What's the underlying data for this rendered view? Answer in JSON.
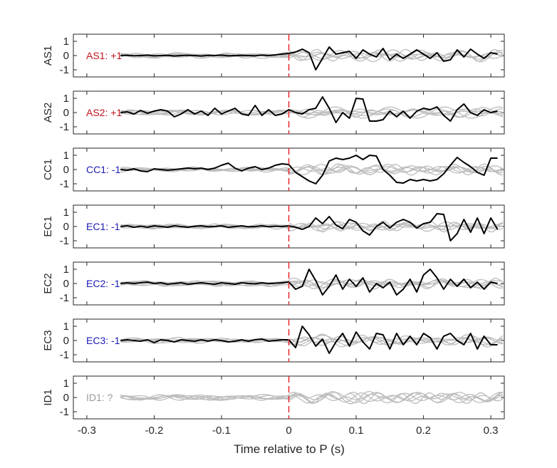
{
  "chart_data": {
    "type": "line",
    "xlabel": "Time relative to P (s)",
    "xlim": [
      -0.32,
      0.32
    ],
    "xticks": [
      -0.3,
      -0.2,
      -0.1,
      0,
      0.1,
      0.2,
      0.3
    ],
    "xtick_labels": [
      "-0.3",
      "-0.2",
      "-0.1",
      "0",
      "0.1",
      "0.2",
      "0.3"
    ],
    "ylim": [
      -1.5,
      1.5
    ],
    "yticks": [
      -1,
      0,
      1
    ],
    "ytick_labels": [
      "-1",
      "0",
      "1"
    ],
    "p_arrival_time": 0,
    "colors": {
      "positive": "#c0141c",
      "negative": "#1a1ab4",
      "unknown": "#9a9a9a",
      "trace": "#000000",
      "background_traces": "#bdbdbd",
      "p_marker": "#e8262a"
    },
    "panels": [
      {
        "ylabel": "AS1",
        "annotation": "AS1: +1",
        "polarity": "positive",
        "trace": {
          "x": [
            -0.25,
            -0.24,
            -0.23,
            -0.22,
            -0.21,
            -0.2,
            -0.19,
            -0.18,
            -0.17,
            -0.16,
            -0.15,
            -0.14,
            -0.13,
            -0.12,
            -0.11,
            -0.1,
            -0.09,
            -0.08,
            -0.07,
            -0.06,
            -0.05,
            -0.04,
            -0.03,
            -0.02,
            -0.01,
            0,
            0.01,
            0.02,
            0.03,
            0.04,
            0.05,
            0.06,
            0.07,
            0.08,
            0.09,
            0.1,
            0.11,
            0.12,
            0.13,
            0.14,
            0.15,
            0.16,
            0.17,
            0.18,
            0.19,
            0.2,
            0.21,
            0.22,
            0.23,
            0.24,
            0.25,
            0.26,
            0.27,
            0.28,
            0.29,
            0.3,
            0.31
          ],
          "y": [
            0,
            0.02,
            -0.02,
            0,
            0.03,
            -0.02,
            0,
            0.02,
            -0.03,
            0,
            0.02,
            0,
            -0.03,
            0.02,
            0,
            0.03,
            -0.02,
            0,
            0.02,
            0,
            -0.02,
            0.03,
            0,
            0.05,
            0.1,
            0.15,
            0.25,
            0.45,
            0.2,
            -1.0,
            -0.2,
            0.6,
            0.1,
            0.2,
            0.3,
            -0.2,
            0.4,
            0.1,
            -0.1,
            0.5,
            -0.3,
            0.1,
            -0.2,
            0.1,
            0.4,
            0.1,
            -0.2,
            0.2,
            -0.4,
            -0.3,
            0.4,
            -0.1,
            0.45,
            0.1,
            -0.2,
            0.2,
            0.1
          ]
        }
      },
      {
        "ylabel": "AS2",
        "annotation": "AS2: +1",
        "polarity": "positive",
        "trace": {
          "x": [
            -0.25,
            -0.24,
            -0.23,
            -0.22,
            -0.21,
            -0.2,
            -0.19,
            -0.18,
            -0.17,
            -0.16,
            -0.15,
            -0.14,
            -0.13,
            -0.12,
            -0.11,
            -0.1,
            -0.09,
            -0.08,
            -0.07,
            -0.06,
            -0.05,
            -0.04,
            -0.03,
            -0.02,
            -0.01,
            0,
            0.01,
            0.02,
            0.03,
            0.04,
            0.05,
            0.06,
            0.07,
            0.08,
            0.09,
            0.1,
            0.11,
            0.12,
            0.13,
            0.14,
            0.15,
            0.16,
            0.17,
            0.18,
            0.19,
            0.2,
            0.21,
            0.22,
            0.23,
            0.24,
            0.25,
            0.26,
            0.27,
            0.28,
            0.29,
            0.3,
            0.31
          ],
          "y": [
            0,
            0.05,
            -0.1,
            0.15,
            -0.05,
            0.1,
            0.2,
            0.1,
            -0.3,
            -0.1,
            0.2,
            -0.1,
            0.1,
            -0.2,
            0.3,
            -0.1,
            0.1,
            0.3,
            -0.1,
            -0.2,
            0.5,
            -0.2,
            0.2,
            -0.2,
            -0.1,
            0.2,
            0,
            -0.1,
            0.2,
            0.3,
            1.1,
            0.3,
            -0.7,
            0,
            -0.4,
            1.0,
            0.95,
            -0.6,
            -0.6,
            -0.5,
            0.1,
            -0.3,
            0.1,
            -0.4,
            0.1,
            0.3,
            0.2,
            0.4,
            -0.2,
            -0.6,
            0.2,
            0.6,
            0,
            -0.2,
            0.2,
            0,
            0.1
          ]
        }
      },
      {
        "ylabel": "CC1",
        "annotation": "CC1: -1",
        "polarity": "negative",
        "trace": {
          "x": [
            -0.25,
            -0.24,
            -0.23,
            -0.22,
            -0.21,
            -0.2,
            -0.19,
            -0.18,
            -0.17,
            -0.16,
            -0.15,
            -0.14,
            -0.13,
            -0.12,
            -0.11,
            -0.1,
            -0.09,
            -0.08,
            -0.07,
            -0.06,
            -0.05,
            -0.04,
            -0.03,
            -0.02,
            -0.01,
            0,
            0.01,
            0.02,
            0.03,
            0.04,
            0.05,
            0.06,
            0.07,
            0.08,
            0.09,
            0.1,
            0.11,
            0.12,
            0.13,
            0.14,
            0.15,
            0.16,
            0.17,
            0.18,
            0.19,
            0.2,
            0.21,
            0.22,
            0.23,
            0.24,
            0.25,
            0.26,
            0.27,
            0.28,
            0.29,
            0.3,
            0.31
          ],
          "y": [
            0,
            -0.05,
            0.05,
            -0.1,
            -0.15,
            0.05,
            0,
            -0.05,
            0,
            0.05,
            0.1,
            0.05,
            0.1,
            0,
            0.1,
            0.3,
            0.45,
            0.1,
            -0.1,
            0.1,
            0.2,
            0,
            0.1,
            0.3,
            0.4,
            0.35,
            -0.2,
            -0.5,
            -0.8,
            -1.0,
            -0.4,
            0.6,
            0.8,
            0.7,
            0.8,
            1.0,
            0.7,
            1.0,
            0.95,
            0,
            -0.4,
            -0.9,
            -0.95,
            -0.7,
            -0.8,
            -0.7,
            -0.8,
            -0.7,
            -0.3,
            0.3,
            0.85,
            0.5,
            0.2,
            -0.2,
            -0.4,
            0.8,
            0.8
          ]
        }
      },
      {
        "ylabel": "EC1",
        "annotation": "EC1: -1",
        "polarity": "negative",
        "trace": {
          "x": [
            -0.25,
            -0.24,
            -0.23,
            -0.22,
            -0.21,
            -0.2,
            -0.19,
            -0.18,
            -0.17,
            -0.16,
            -0.15,
            -0.14,
            -0.13,
            -0.12,
            -0.11,
            -0.1,
            -0.09,
            -0.08,
            -0.07,
            -0.06,
            -0.05,
            -0.04,
            -0.03,
            -0.02,
            -0.01,
            0,
            0.01,
            0.02,
            0.03,
            0.04,
            0.05,
            0.06,
            0.07,
            0.08,
            0.09,
            0.1,
            0.11,
            0.12,
            0.13,
            0.14,
            0.15,
            0.16,
            0.17,
            0.18,
            0.19,
            0.2,
            0.21,
            0.22,
            0.23,
            0.24,
            0.25,
            0.26,
            0.27,
            0.28,
            0.29,
            0.3,
            0.31
          ],
          "y": [
            0,
            0.05,
            -0.05,
            0.02,
            -0.05,
            0.05,
            0,
            -0.05,
            0.05,
            0,
            -0.05,
            0.02,
            0.05,
            -0.02,
            0,
            0.05,
            -0.05,
            0,
            0.05,
            -0.02,
            0,
            0.05,
            -0.02,
            0.02,
            0,
            0.05,
            -0.05,
            -0.2,
            0,
            0.6,
            0.2,
            0.7,
            0.1,
            -0.15,
            0.5,
            0.3,
            -0.3,
            -0.6,
            0,
            0.3,
            -0.1,
            0.3,
            0.5,
            0.3,
            -0.1,
            0.2,
            0.3,
            0.9,
            0.85,
            -1.0,
            -0.5,
            0.5,
            -0.4,
            0.6,
            -0.5,
            0.6,
            -0.2
          ]
        }
      },
      {
        "ylabel": "EC2",
        "annotation": "EC2: -1",
        "polarity": "negative",
        "trace": {
          "x": [
            -0.25,
            -0.24,
            -0.23,
            -0.22,
            -0.21,
            -0.2,
            -0.19,
            -0.18,
            -0.17,
            -0.16,
            -0.15,
            -0.14,
            -0.13,
            -0.12,
            -0.11,
            -0.1,
            -0.09,
            -0.08,
            -0.07,
            -0.06,
            -0.05,
            -0.04,
            -0.03,
            -0.02,
            -0.01,
            0,
            0.01,
            0.02,
            0.03,
            0.04,
            0.05,
            0.06,
            0.07,
            0.08,
            0.09,
            0.1,
            0.11,
            0.12,
            0.13,
            0.14,
            0.15,
            0.16,
            0.17,
            0.18,
            0.19,
            0.2,
            0.21,
            0.22,
            0.23,
            0.24,
            0.25,
            0.26,
            0.27,
            0.28,
            0.29,
            0.3,
            0.31
          ],
          "y": [
            0,
            0.05,
            0,
            0.05,
            0.1,
            0,
            0.05,
            -0.05,
            0,
            0.05,
            -0.05,
            0,
            0.05,
            0,
            -0.05,
            0.05,
            0,
            -0.05,
            0.05,
            0,
            -0.02,
            0.05,
            0,
            0.02,
            0.05,
            0.1,
            -0.4,
            -0.2,
            1.0,
            0.2,
            -0.8,
            -0.2,
            0.6,
            -0.4,
            0.3,
            -0.2,
            0.4,
            -0.6,
            0,
            -0.3,
            0.1,
            -0.8,
            -0.4,
            0.3,
            -0.6,
            0.6,
            1.0,
            0.4,
            -0.4,
            0.3,
            -0.2,
            0.3,
            -0.3,
            0.1,
            -0.4,
            0.1,
            0
          ]
        }
      },
      {
        "ylabel": "EC3",
        "annotation": "EC3: -1",
        "polarity": "negative",
        "trace": {
          "x": [
            -0.25,
            -0.24,
            -0.23,
            -0.22,
            -0.21,
            -0.2,
            -0.19,
            -0.18,
            -0.17,
            -0.16,
            -0.15,
            -0.14,
            -0.13,
            -0.12,
            -0.11,
            -0.1,
            -0.09,
            -0.08,
            -0.07,
            -0.06,
            -0.05,
            -0.04,
            -0.03,
            -0.02,
            -0.01,
            0,
            0.01,
            0.02,
            0.03,
            0.04,
            0.05,
            0.06,
            0.07,
            0.08,
            0.09,
            0.1,
            0.11,
            0.12,
            0.13,
            0.14,
            0.15,
            0.16,
            0.17,
            0.18,
            0.19,
            0.2,
            0.21,
            0.22,
            0.23,
            0.24,
            0.25,
            0.26,
            0.27,
            0.28,
            0.29,
            0.3,
            0.31
          ],
          "y": [
            0,
            0.05,
            0,
            -0.05,
            0.05,
            -0.15,
            0.05,
            0,
            -0.1,
            0.05,
            0,
            -0.05,
            0.05,
            -0.05,
            0.05,
            0,
            -0.1,
            -0.05,
            0.05,
            -0.05,
            0.05,
            0.1,
            -0.05,
            0,
            0.05,
            0.05,
            -0.5,
            1.0,
            0.4,
            -0.4,
            0.1,
            -0.9,
            -0.1,
            0.5,
            -0.4,
            0.6,
            -0.1,
            -0.6,
            0.5,
            0.4,
            -0.6,
            0.5,
            -0.3,
            0.3,
            -0.3,
            0.5,
            0.2,
            -0.6,
            0.3,
            0.5,
            0,
            -0.3,
            0.5,
            -0.6,
            0.3,
            -0.3,
            -0.3
          ]
        }
      },
      {
        "ylabel": "ID1",
        "annotation": "ID1: ?",
        "polarity": "unknown",
        "trace": null
      }
    ]
  }
}
